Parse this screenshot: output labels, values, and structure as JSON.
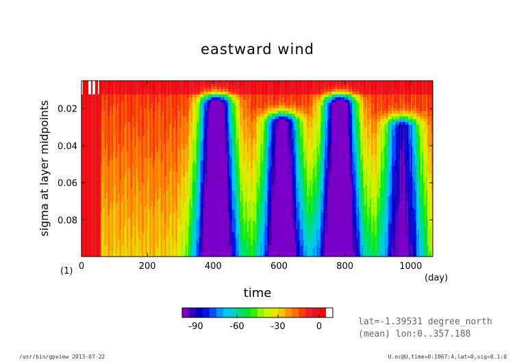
{
  "chart_data": {
    "type": "heatmap",
    "title": "eastward wind",
    "xlabel": "time",
    "ylabel": "sigma at layer midpoints",
    "x_unit": "(day)",
    "y_unit": "(1)",
    "xlim": [
      0,
      1067
    ],
    "ylim": [
      0.0998,
      0.005
    ],
    "x_ticks": [
      0,
      200,
      400,
      600,
      800,
      1000
    ],
    "x_tick_labels": [
      "0",
      "200",
      "400",
      "600",
      "800",
      "1000"
    ],
    "y_ticks": [
      0.02,
      0.04,
      0.06,
      0.08
    ],
    "y_tick_labels": [
      "0.02",
      "0.04",
      "0.06",
      "0.08"
    ],
    "colorbar": {
      "levels": [
        -100,
        -95,
        -90,
        -85,
        -80,
        -75,
        -70,
        -65,
        -60,
        -55,
        -50,
        -45,
        -40,
        -35,
        -30,
        -25,
        -20,
        -15,
        -10,
        -5,
        0,
        5,
        10
      ],
      "colors": [
        "#7a00c8",
        "#3c00b4",
        "#0000c8",
        "#0014e6",
        "#0050ff",
        "#0096ff",
        "#00c8ff",
        "#00d2c8",
        "#00dc78",
        "#00e632",
        "#32f000",
        "#96f500",
        "#c8f500",
        "#e6e600",
        "#f0c800",
        "#ff9600",
        "#ff6e00",
        "#ff3c00",
        "#f01e28",
        "#e6141e",
        "#ff0000",
        "#ffffff"
      ],
      "tick_values": [
        -90,
        -60,
        -30,
        0
      ],
      "tick_labels": [
        "-90",
        "-60",
        "-30",
        "0"
      ]
    },
    "bands": [
      {
        "center": 410,
        "y_top": 0.018,
        "depth": -100
      },
      {
        "center": 610,
        "y_top": 0.028,
        "depth": -90
      },
      {
        "center": 785,
        "y_top": 0.018,
        "depth": -100
      },
      {
        "center": 975,
        "y_top": 0.03,
        "depth": -75
      }
    ]
  },
  "info": {
    "line1": "lat=-1.39531 degree_north",
    "line2": "(mean) lon:0..357.188"
  },
  "footer": {
    "left": "/usr/bin/gpview  2013-07-22",
    "right": "U.nc@U,time=0:1067:4,lat=0,sig=0.1:0"
  }
}
